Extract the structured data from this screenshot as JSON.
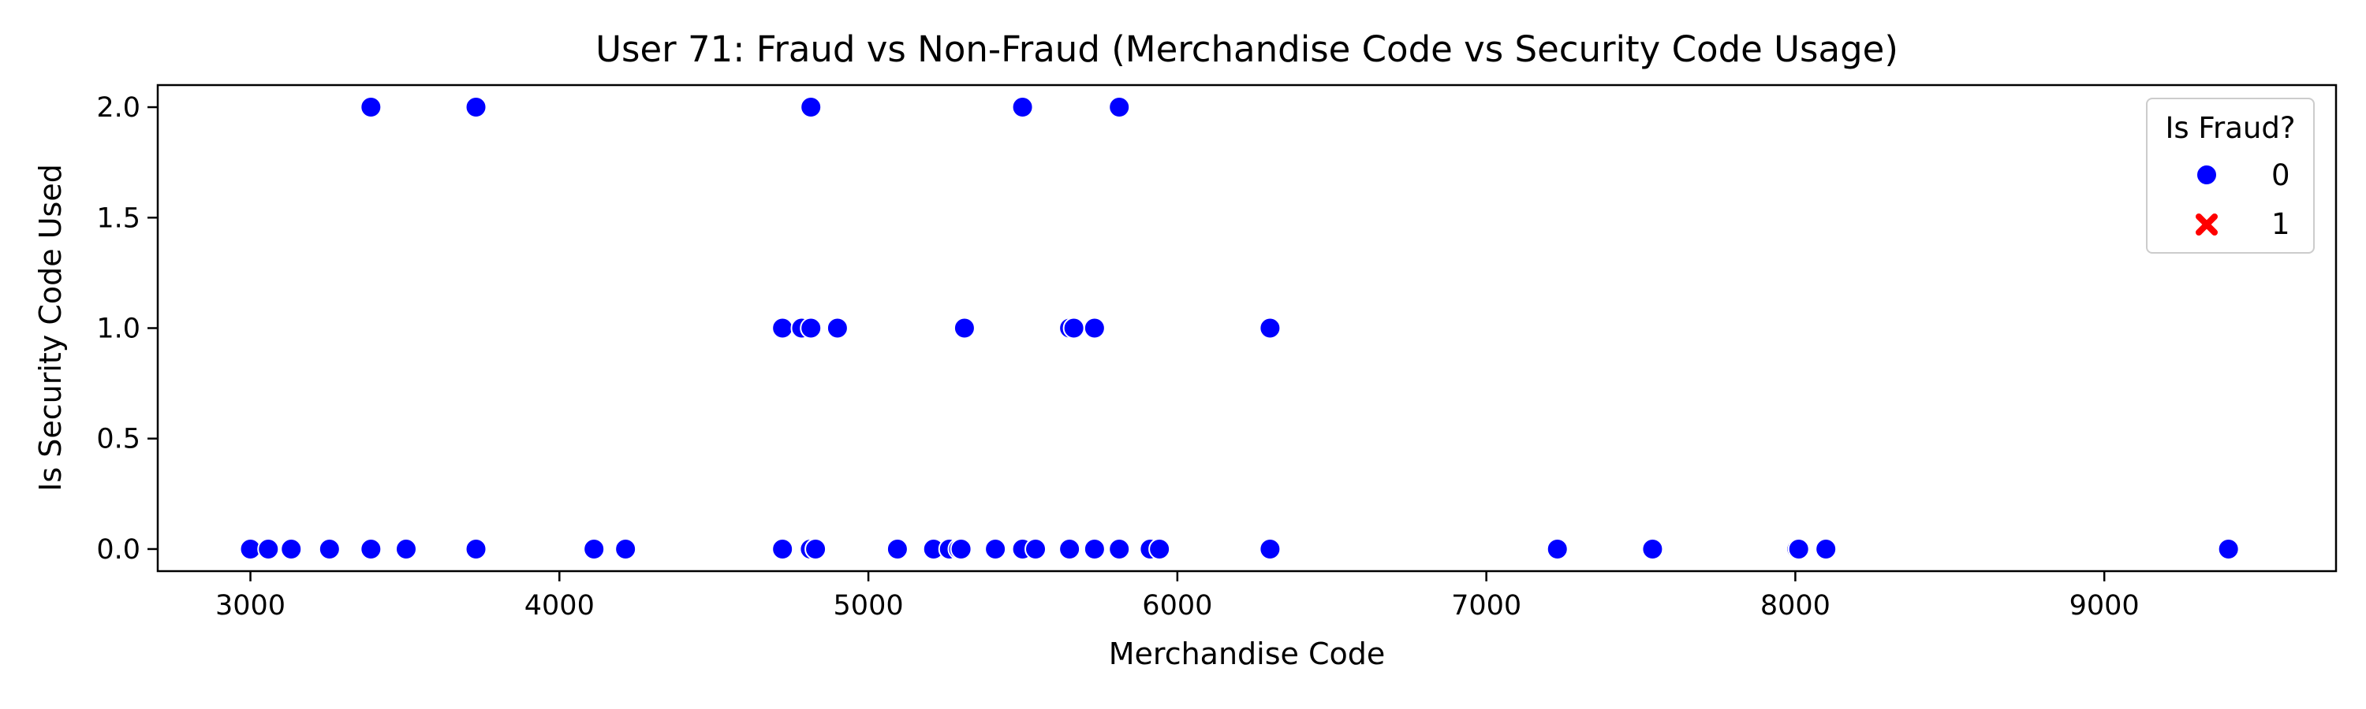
{
  "chart_data": {
    "type": "scatter",
    "title": "User 71: Fraud vs Non-Fraud (Merchandise Code vs Security Code Usage)",
    "xlabel": "Merchandise Code",
    "ylabel": "Is Security Code Used",
    "xlim": [
      2700,
      9750
    ],
    "ylim": [
      -0.1,
      2.1
    ],
    "xticks": [
      3000,
      4000,
      5000,
      6000,
      7000,
      8000,
      9000
    ],
    "yticks": [
      0.0,
      0.5,
      1.0,
      1.5,
      2.0
    ],
    "xtick_labels": [
      "3000",
      "4000",
      "5000",
      "6000",
      "7000",
      "8000",
      "9000"
    ],
    "ytick_labels": [
      "0.0",
      "0.5",
      "1.0",
      "1.5",
      "2.0"
    ],
    "grid": false,
    "legend": {
      "title": "Is Fraud?",
      "placement": "top-right",
      "entries": [
        {
          "label": "0",
          "marker": "circle",
          "color": "#0000ff"
        },
        {
          "label": "1",
          "marker": "x",
          "color": "#ff0000"
        }
      ]
    },
    "series": [
      {
        "name": "0",
        "color": "#0000ff",
        "marker": "circle",
        "points": [
          [
            3000,
            0
          ],
          [
            3058,
            0
          ],
          [
            3132,
            0
          ],
          [
            3256,
            0
          ],
          [
            3390,
            0
          ],
          [
            3504,
            0
          ],
          [
            3730,
            0
          ],
          [
            4112,
            0
          ],
          [
            4214,
            0
          ],
          [
            4722,
            0
          ],
          [
            4812,
            0
          ],
          [
            4829,
            0
          ],
          [
            5094,
            0
          ],
          [
            5211,
            0
          ],
          [
            5262,
            0
          ],
          [
            5292,
            0
          ],
          [
            5300,
            0
          ],
          [
            5411,
            0
          ],
          [
            5499,
            0
          ],
          [
            5541,
            0
          ],
          [
            5651,
            0
          ],
          [
            5732,
            0
          ],
          [
            5812,
            0
          ],
          [
            5912,
            0
          ],
          [
            5942,
            0
          ],
          [
            6300,
            0
          ],
          [
            7230,
            0
          ],
          [
            7538,
            0
          ],
          [
            8005,
            0
          ],
          [
            8011,
            0
          ],
          [
            8099,
            0
          ],
          [
            9402,
            0
          ],
          [
            4722,
            1
          ],
          [
            4784,
            1
          ],
          [
            4814,
            1
          ],
          [
            4900,
            1
          ],
          [
            5311,
            1
          ],
          [
            5651,
            1
          ],
          [
            5665,
            1
          ],
          [
            5732,
            1
          ],
          [
            6300,
            1
          ],
          [
            3390,
            2
          ],
          [
            3730,
            2
          ],
          [
            4814,
            2
          ],
          [
            5499,
            2
          ],
          [
            5812,
            2
          ]
        ]
      },
      {
        "name": "1",
        "color": "#ff0000",
        "marker": "x",
        "points": []
      }
    ]
  }
}
